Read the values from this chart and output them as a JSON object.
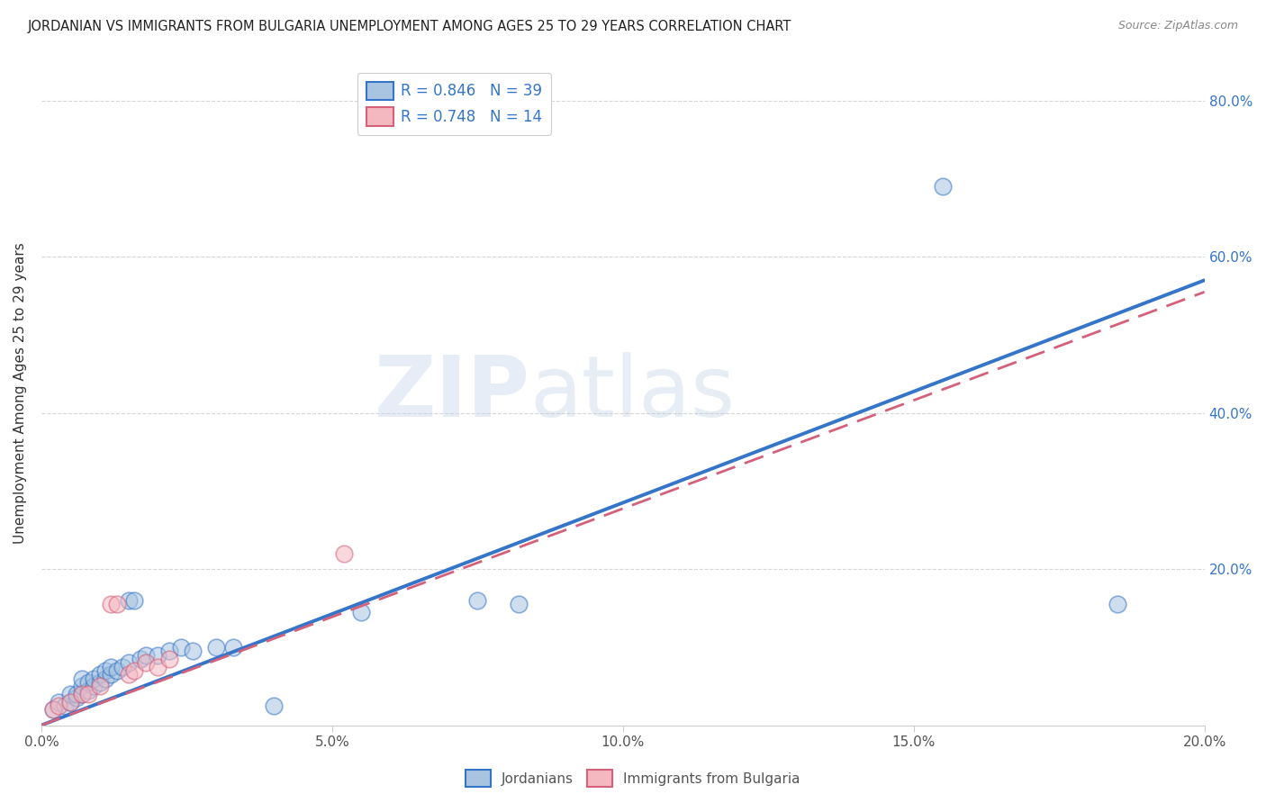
{
  "title": "JORDANIAN VS IMMIGRANTS FROM BULGARIA UNEMPLOYMENT AMONG AGES 25 TO 29 YEARS CORRELATION CHART",
  "source": "Source: ZipAtlas.com",
  "ylabel": "Unemployment Among Ages 25 to 29 years",
  "xlim": [
    0,
    0.2
  ],
  "ylim": [
    0,
    0.85
  ],
  "xtick_labels": [
    "0.0%",
    "5.0%",
    "10.0%",
    "15.0%",
    "20.0%"
  ],
  "xtick_vals": [
    0,
    0.05,
    0.1,
    0.15,
    0.2
  ],
  "ytick_labels": [
    "20.0%",
    "40.0%",
    "60.0%",
    "80.0%"
  ],
  "ytick_vals": [
    0.2,
    0.4,
    0.6,
    0.8
  ],
  "R_jordanian": 0.846,
  "N_jordanian": 39,
  "R_bulgaria": 0.748,
  "N_bulgaria": 14,
  "legend_labels": [
    "Jordanians",
    "Immigrants from Bulgaria"
  ],
  "jordanian_color": "#a8c4e0",
  "bulgaria_color": "#f4b8c1",
  "line_blue": "#3575c9",
  "line_pink": "#d4607a",
  "watermark_zip": "ZIP",
  "watermark_atlas": "atlas",
  "line_blue_slope": 2.85,
  "line_blue_intercept": 0.0,
  "line_pink_slope": 2.6,
  "line_pink_intercept": 0.0,
  "jordanian_points": [
    [
      0.002,
      0.02
    ],
    [
      0.003,
      0.03
    ],
    [
      0.004,
      0.025
    ],
    [
      0.005,
      0.03
    ],
    [
      0.005,
      0.04
    ],
    [
      0.006,
      0.035
    ],
    [
      0.006,
      0.04
    ],
    [
      0.007,
      0.04
    ],
    [
      0.007,
      0.05
    ],
    [
      0.007,
      0.06
    ],
    [
      0.008,
      0.045
    ],
    [
      0.008,
      0.055
    ],
    [
      0.009,
      0.05
    ],
    [
      0.009,
      0.06
    ],
    [
      0.01,
      0.055
    ],
    [
      0.01,
      0.065
    ],
    [
      0.011,
      0.06
    ],
    [
      0.011,
      0.07
    ],
    [
      0.012,
      0.065
    ],
    [
      0.012,
      0.075
    ],
    [
      0.013,
      0.07
    ],
    [
      0.014,
      0.075
    ],
    [
      0.015,
      0.08
    ],
    [
      0.015,
      0.16
    ],
    [
      0.016,
      0.16
    ],
    [
      0.017,
      0.085
    ],
    [
      0.018,
      0.09
    ],
    [
      0.02,
      0.09
    ],
    [
      0.022,
      0.095
    ],
    [
      0.024,
      0.1
    ],
    [
      0.026,
      0.095
    ],
    [
      0.03,
      0.1
    ],
    [
      0.033,
      0.1
    ],
    [
      0.04,
      0.025
    ],
    [
      0.055,
      0.145
    ],
    [
      0.075,
      0.16
    ],
    [
      0.082,
      0.155
    ],
    [
      0.155,
      0.69
    ],
    [
      0.185,
      0.155
    ]
  ],
  "bulgaria_points": [
    [
      0.002,
      0.02
    ],
    [
      0.003,
      0.025
    ],
    [
      0.005,
      0.03
    ],
    [
      0.007,
      0.04
    ],
    [
      0.008,
      0.04
    ],
    [
      0.01,
      0.05
    ],
    [
      0.012,
      0.155
    ],
    [
      0.013,
      0.155
    ],
    [
      0.015,
      0.065
    ],
    [
      0.016,
      0.07
    ],
    [
      0.018,
      0.08
    ],
    [
      0.02,
      0.075
    ],
    [
      0.022,
      0.085
    ],
    [
      0.052,
      0.22
    ]
  ]
}
